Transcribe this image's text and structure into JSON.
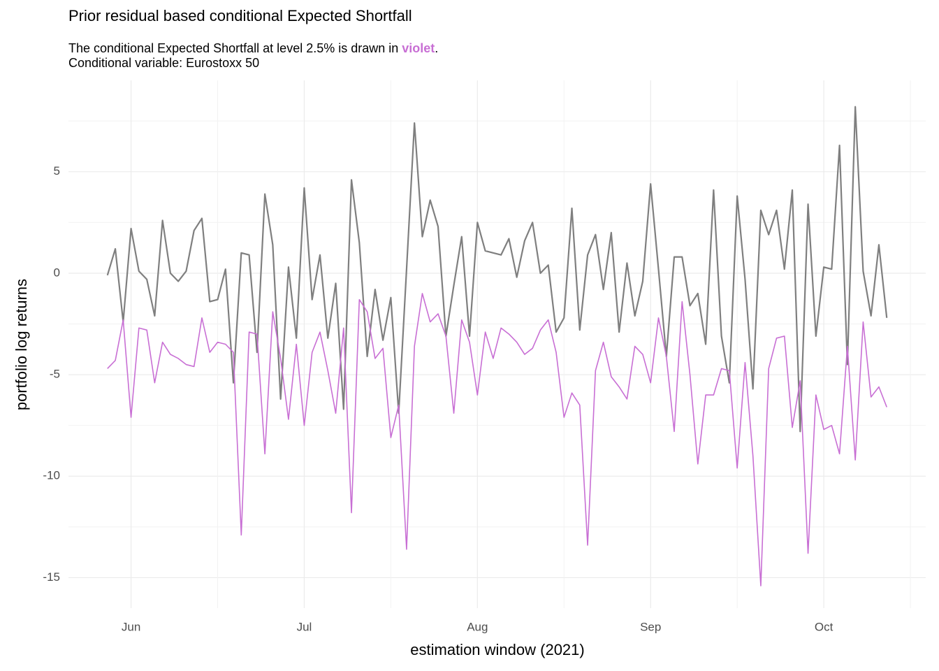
{
  "chart_data": {
    "type": "line",
    "title": "Prior residual based conditional Expected Shortfall",
    "subtitle": "The conditional Expected Shortfall at level 2.5% is drawn in",
    "subtitle_highlight": "violet",
    "subtitle_end": ".",
    "caption": "Conditional variable: Eurostoxx 50",
    "x_label": "estimation window (2021)",
    "y_label": "portfolio log returns",
    "categories": [
      null,
      null,
      null,
      "Jun",
      null,
      null,
      null,
      null,
      null,
      null,
      null,
      null,
      null,
      null,
      null,
      null,
      null,
      null,
      null,
      null,
      null,
      null,
      null,
      null,
      null,
      "Jul",
      null,
      null,
      null,
      null,
      null,
      null,
      null,
      null,
      null,
      null,
      null,
      null,
      null,
      null,
      null,
      null,
      null,
      null,
      null,
      null,
      null,
      "Aug",
      null,
      null,
      null,
      null,
      null,
      null,
      null,
      null,
      null,
      null,
      null,
      null,
      null,
      null,
      null,
      null,
      null,
      null,
      null,
      null,
      null,
      "Sep",
      null,
      null,
      null,
      null,
      null,
      null,
      null,
      null,
      null,
      null,
      null,
      null,
      null,
      null,
      null,
      null,
      null,
      null,
      null,
      null,
      null,
      "Oct",
      null,
      null,
      null,
      null,
      null,
      null,
      null,
      null
    ],
    "series": [
      {
        "color": "#7f7f7f",
        "values": [
          -0.1,
          1.2,
          -2.4,
          2.2,
          0.1,
          -0.3,
          -2.1,
          2.6,
          0.0,
          -0.4,
          0.1,
          2.1,
          2.7,
          -1.4,
          -1.3,
          0.2,
          -5.4,
          1.0,
          0.9,
          -3.9,
          3.9,
          1.4,
          -6.2,
          0.3,
          -3.2,
          4.2,
          -1.3,
          0.9,
          -3.2,
          -0.5,
          -6.7,
          4.6,
          1.5,
          -4.1,
          -0.8,
          -3.3,
          -1.2,
          -6.9,
          0.2,
          7.4,
          1.8,
          3.6,
          2.3,
          -3.1,
          -0.6,
          1.8,
          -3.1,
          2.5,
          1.1,
          1.0,
          0.9,
          1.7,
          -0.2,
          1.6,
          2.5,
          0.0,
          0.4,
          -2.9,
          -2.2,
          3.2,
          -2.8,
          0.9,
          1.9,
          -0.8,
          2.0,
          -2.9,
          0.5,
          -2.1,
          -0.4,
          4.4,
          0.2,
          -4.1,
          0.8,
          0.8,
          -1.6,
          -1.0,
          -3.5,
          4.1,
          -3.1,
          -5.4,
          3.8,
          -0.3,
          -5.7,
          3.1,
          1.9,
          3.1,
          0.2,
          4.1,
          -7.8,
          3.4,
          -3.1,
          0.3,
          0.2,
          6.3,
          -4.5,
          8.2,
          0.1,
          -2.1,
          1.4,
          -2.2
        ]
      },
      {
        "color": "#c86fd4",
        "values": [
          -4.7,
          -4.3,
          -2.3,
          -7.1,
          -2.7,
          -2.8,
          -5.4,
          -3.4,
          -4.0,
          -4.2,
          -4.5,
          -4.6,
          -2.2,
          -3.9,
          -3.4,
          -3.5,
          -3.9,
          -12.9,
          -2.9,
          -3.0,
          -8.9,
          -1.9,
          -4.2,
          -7.2,
          -3.5,
          -7.5,
          -3.9,
          -2.9,
          -4.8,
          -6.9,
          -2.7,
          -11.8,
          -1.3,
          -1.9,
          -4.2,
          -3.7,
          -8.1,
          -6.5,
          -13.6,
          -3.6,
          -1.0,
          -2.4,
          -2.0,
          -3.1,
          -6.9,
          -2.3,
          -3.4,
          -6.0,
          -2.9,
          -4.2,
          -2.7,
          -3.0,
          -3.4,
          -4.0,
          -3.7,
          -2.8,
          -2.3,
          -3.9,
          -7.1,
          -5.9,
          -6.5,
          -13.4,
          -4.8,
          -3.4,
          -5.1,
          -5.6,
          -6.2,
          -3.6,
          -4.0,
          -5.4,
          -2.2,
          -4.1,
          -7.8,
          -1.4,
          -5.0,
          -9.4,
          -6.0,
          -6.0,
          -4.7,
          -4.8,
          -9.6,
          -4.4,
          -9.0,
          -15.4,
          -4.7,
          -3.2,
          -3.1,
          -7.6,
          -5.3,
          -13.8,
          -6.0,
          -7.7,
          -7.5,
          -8.9,
          -3.6,
          -9.2,
          -2.4,
          -6.1,
          -5.6,
          -6.6
        ]
      }
    ],
    "ylim": [
      -16.5,
      9.5
    ],
    "yticks": [
      -15,
      -10,
      -5,
      0,
      5
    ],
    "grid": true
  }
}
